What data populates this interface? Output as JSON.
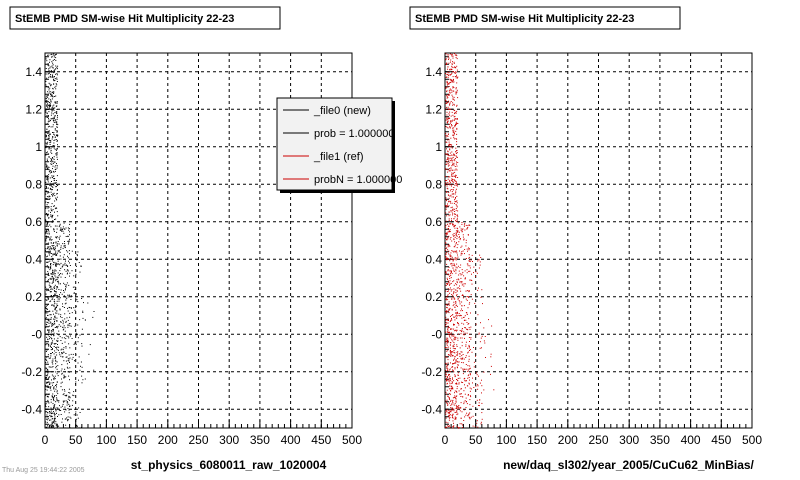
{
  "footer": "Thu Aug 25 19:44:22 2005",
  "colors": {
    "new": "#000000",
    "ref": "#cc0000",
    "grid": "#000000",
    "legend_bg": "#f2f2f2"
  },
  "legend": {
    "entries": [
      {
        "label": "_file0 (new)",
        "color": "#000000"
      },
      {
        "label": "prob = 1.000000",
        "color": "#000000"
      },
      {
        "label": "_file1 (ref)",
        "color": "#cc0000"
      },
      {
        "label": "probN = 1.000000",
        "color": "#cc0000"
      }
    ]
  },
  "chart_data": [
    {
      "type": "scatter",
      "title": "StEMB PMD SM-wise Hit Multiplicity 22-23",
      "xlabel": "st_physics_6080011_raw_1020004",
      "ylabel": "",
      "xlim": [
        0,
        500
      ],
      "ylim": [
        -0.5,
        1.5
      ],
      "grid": true,
      "legend_position": "top-right",
      "x_ticks": [
        "0",
        "50",
        "100",
        "150",
        "200",
        "250",
        "300",
        "350",
        "400",
        "450",
        "500"
      ],
      "y_ticks": [
        "-0.4",
        "-0.2",
        "-0",
        "0.2",
        "0.4",
        "0.6",
        "0.8",
        "1",
        "1.2",
        "1.4"
      ],
      "series": [
        {
          "name": "_file0 (new)",
          "color": "#000000",
          "description_bands": [
            {
              "x_range": [
                0,
                20
              ],
              "y_range": [
                -0.5,
                1.5
              ],
              "count": 1100
            },
            {
              "x_range": [
                20,
                40
              ],
              "y_range": [
                -0.5,
                0.6
              ],
              "count": 320
            },
            {
              "x_range": [
                40,
                60
              ],
              "y_range": [
                -0.5,
                0.45
              ],
              "count": 90
            },
            {
              "x_range": [
                60,
                80
              ],
              "y_range": [
                -0.3,
                0.2
              ],
              "count": 15
            }
          ]
        }
      ]
    },
    {
      "type": "scatter",
      "title": "StEMB PMD SM-wise Hit Multiplicity 22-23",
      "xlabel": "new/daq_sl302/year_2005/CuCu62_MinBias/",
      "ylabel": "",
      "xlim": [
        0,
        500
      ],
      "ylim": [
        -0.5,
        1.5
      ],
      "grid": true,
      "x_ticks": [
        "0",
        "50",
        "100",
        "150",
        "200",
        "250",
        "300",
        "350",
        "400",
        "450",
        "500"
      ],
      "y_ticks": [
        "-0.4",
        "-0.2",
        "-0",
        "0.2",
        "0.4",
        "0.6",
        "0.8",
        "1",
        "1.2",
        "1.4"
      ],
      "series": [
        {
          "name": "_file1 (ref)",
          "color": "#cc0000",
          "description_bands": [
            {
              "x_range": [
                0,
                20
              ],
              "y_range": [
                -0.5,
                1.5
              ],
              "count": 1100
            },
            {
              "x_range": [
                20,
                40
              ],
              "y_range": [
                -0.5,
                0.6
              ],
              "count": 320
            },
            {
              "x_range": [
                40,
                60
              ],
              "y_range": [
                -0.5,
                0.45
              ],
              "count": 90
            },
            {
              "x_range": [
                60,
                80
              ],
              "y_range": [
                -0.3,
                0.2
              ],
              "count": 15
            }
          ]
        }
      ]
    }
  ]
}
